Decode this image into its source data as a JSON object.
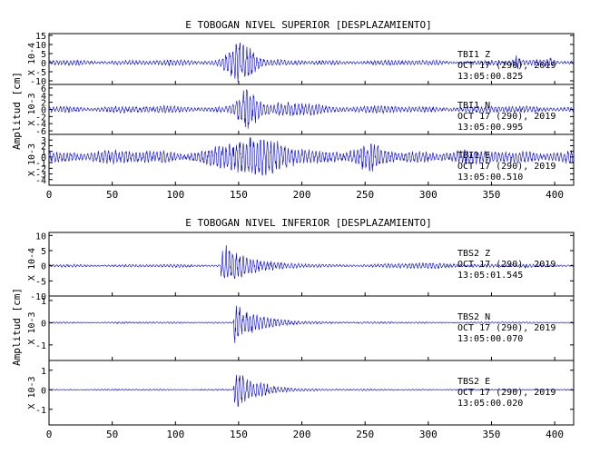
{
  "chart_data": [
    {
      "type": "line",
      "title": "E TOBOGAN NIVEL SUPERIOR [DESPLAZAMIENTO]",
      "ylabel": "Amplitud [cm]",
      "xlim": [
        0,
        415
      ],
      "x_ticks": [
        0,
        50,
        100,
        150,
        200,
        250,
        300,
        350,
        400
      ],
      "grid": false,
      "traces": [
        {
          "station": "TBI1",
          "component": "Z",
          "date_line": "OCT 17 (290), 2019",
          "time_line": "13:05:00.825",
          "scale_label": "X 10-4",
          "ylim": [
            -12,
            16
          ],
          "y_ticks": [
            -10,
            -5,
            0,
            5,
            10,
            15
          ],
          "noise_amplitude": 1.8,
          "events": [
            {
              "center": 152,
              "width": 12,
              "peak": 11
            },
            {
              "center": 370,
              "width": 3,
              "peak": 3
            },
            {
              "center": 395,
              "width": 4,
              "peak": 2
            }
          ]
        },
        {
          "station": "TBI1",
          "component": "N",
          "date_line": "OCT 17 (290), 2019",
          "time_line": "13:05:00.995",
          "scale_label": "X 10-3",
          "ylim": [
            -7,
            7
          ],
          "y_ticks": [
            -6,
            -4,
            -2,
            0,
            2,
            4,
            6
          ],
          "noise_amplitude": 1.2,
          "events": [
            {
              "center": 157,
              "width": 8,
              "peak": 5.5
            },
            {
              "center": 195,
              "width": 20,
              "peak": 1.5
            }
          ]
        },
        {
          "station": "TBI1",
          "component": "E",
          "date_line": "OCT 17 (290), 2019",
          "time_line": "13:05:00.510",
          "scale_label": "X 10-3",
          "ylim": [
            -5,
            4
          ],
          "y_ticks": [
            -4,
            -3,
            -2,
            -1,
            0,
            1,
            2,
            3
          ],
          "noise_amplitude": 1.5,
          "events": [
            {
              "center": 165,
              "width": 30,
              "peak": 2.5
            },
            {
              "center": 255,
              "width": 12,
              "peak": 1.2
            }
          ]
        }
      ]
    },
    {
      "type": "line",
      "title": "E TOBOGAN NIVEL INFERIOR [DESPLAZAMIENTO]",
      "ylabel": "Amplitud [cm]",
      "xlim": [
        0,
        415
      ],
      "x_ticks": [
        0,
        50,
        100,
        150,
        200,
        250,
        300,
        350,
        400
      ],
      "grid": false,
      "traces": [
        {
          "station": "TBS2",
          "component": "Z",
          "date_line": "OCT 17 (290), 2019",
          "time_line": "13:05:01.545",
          "scale_label": "X 10-4",
          "ylim": [
            -10,
            11
          ],
          "y_ticks": [
            -10,
            -5,
            0,
            5,
            10
          ],
          "noise_amplitude": 0.6,
          "events": [
            {
              "center": 150,
              "width": 20,
              "peak": 8,
              "onset": 136
            },
            {
              "center": 300,
              "width": 30,
              "peak": 0.6
            }
          ]
        },
        {
          "station": "TBS2",
          "component": "N",
          "date_line": "OCT 17 (290), 2019",
          "time_line": "13:05:00.070",
          "scale_label": "X 10-3",
          "ylim": [
            -1.7,
            1.2
          ],
          "y_ticks": [
            -1,
            0,
            1
          ],
          "noise_amplitude": 0.05,
          "events": [
            {
              "center": 160,
              "width": 18,
              "peak": 1.0,
              "onset": 146
            }
          ]
        },
        {
          "station": "TBS2",
          "component": "E",
          "date_line": "OCT 17 (290), 2019",
          "time_line": "13:05:00.020",
          "scale_label": "X 10-3",
          "ylim": [
            -1.8,
            1.5
          ],
          "y_ticks": [
            -1,
            0,
            1
          ],
          "noise_amplitude": 0.05,
          "events": [
            {
              "center": 158,
              "width": 18,
              "peak": 1.1,
              "onset": 146
            }
          ]
        }
      ]
    }
  ]
}
